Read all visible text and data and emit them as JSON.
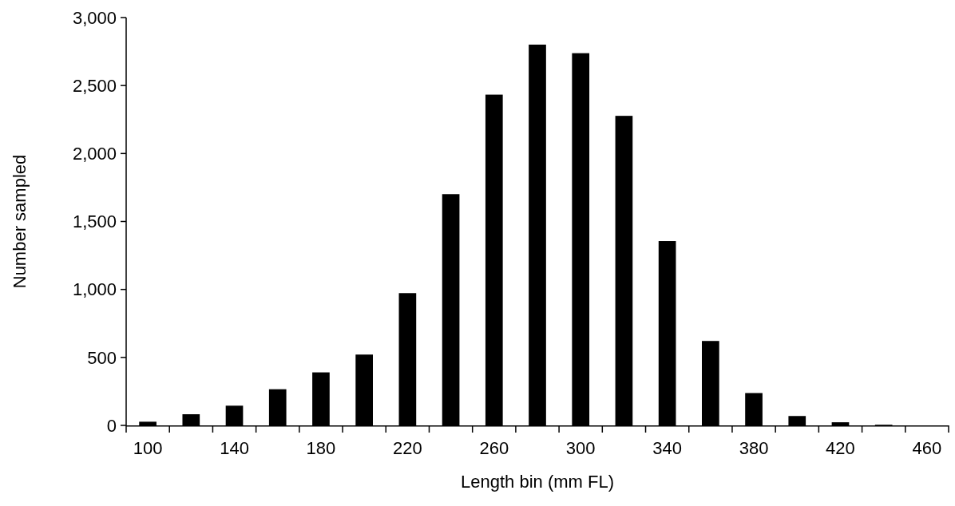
{
  "chart_data": {
    "type": "bar",
    "xlabel": "Length bin (mm FL)",
    "ylabel": "Number sampled",
    "categories": [
      "100",
      null,
      "140",
      null,
      "180",
      null,
      "220",
      null,
      "260",
      null,
      "300",
      null,
      "340",
      null,
      "380",
      null,
      "420",
      null,
      "460"
    ],
    "values": [
      27,
      82,
      145,
      266,
      390,
      521,
      973,
      1701,
      2433,
      2801,
      2738,
      2277,
      1356,
      621,
      238,
      69,
      23,
      5,
      0
    ],
    "color": "#000000",
    "ylim": [
      0,
      3000
    ],
    "yticks": [
      {
        "value": 0,
        "label": "0"
      },
      {
        "value": 500,
        "label": "500"
      },
      {
        "value": 1000,
        "label": "1,000"
      },
      {
        "value": 1500,
        "label": "1,500"
      },
      {
        "value": 2000,
        "label": "2,000"
      },
      {
        "value": 2500,
        "label": "2,500"
      },
      {
        "value": 3000,
        "label": "3,000"
      }
    ],
    "grid": false
  }
}
